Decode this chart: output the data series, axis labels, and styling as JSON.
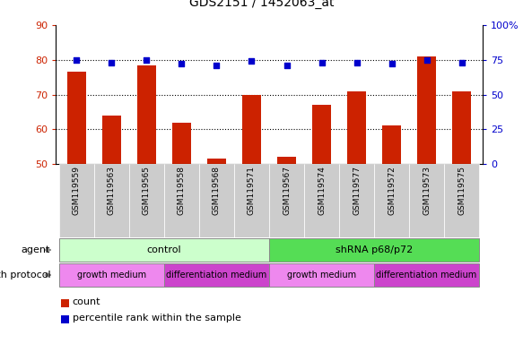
{
  "title": "GDS2151 / 1452063_at",
  "samples": [
    "GSM119559",
    "GSM119563",
    "GSM119565",
    "GSM119558",
    "GSM119568",
    "GSM119571",
    "GSM119567",
    "GSM119574",
    "GSM119577",
    "GSM119572",
    "GSM119573",
    "GSM119575"
  ],
  "counts": [
    76.5,
    64.0,
    78.5,
    62.0,
    51.5,
    70.0,
    52.0,
    67.0,
    71.0,
    61.0,
    81.0,
    71.0
  ],
  "percentile_ranks": [
    75,
    73,
    75,
    72,
    71,
    74,
    71,
    73,
    73,
    72,
    75,
    73
  ],
  "left_ylim": [
    50,
    90
  ],
  "left_yticks": [
    50,
    60,
    70,
    80,
    90
  ],
  "right_ylim": [
    0,
    100
  ],
  "right_yticks": [
    0,
    25,
    50,
    75,
    100
  ],
  "right_yticklabels": [
    "0",
    "25",
    "50",
    "75",
    "100%"
  ],
  "bar_color": "#cc2200",
  "marker_color": "#0000cc",
  "agent_groups": [
    {
      "label": "control",
      "start": 0,
      "end": 6,
      "color": "#ccffcc"
    },
    {
      "label": "shRNA p68/p72",
      "start": 6,
      "end": 12,
      "color": "#55dd55"
    }
  ],
  "growth_protocol_groups": [
    {
      "label": "growth medium",
      "start": 0,
      "end": 3,
      "color": "#ee88ee"
    },
    {
      "label": "differentiation medium",
      "start": 3,
      "end": 6,
      "color": "#cc44cc"
    },
    {
      "label": "growth medium",
      "start": 6,
      "end": 9,
      "color": "#ee88ee"
    },
    {
      "label": "differentiation medium",
      "start": 9,
      "end": 12,
      "color": "#cc44cc"
    }
  ],
  "legend_count_label": "count",
  "legend_pct_label": "percentile rank within the sample",
  "agent_label": "agent",
  "growth_protocol_label": "growth protocol",
  "tick_label_color": "#cc2200",
  "right_tick_color": "#0000cc",
  "xlabel_bg_color": "#cccccc"
}
